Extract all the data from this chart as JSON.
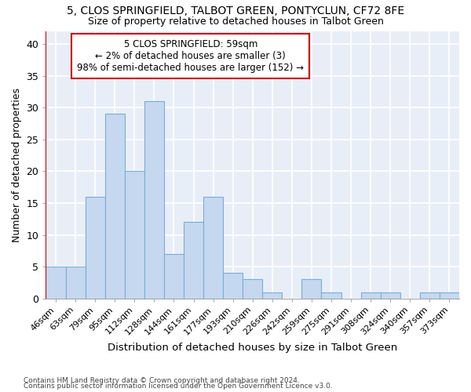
{
  "title1": "5, CLOS SPRINGFIELD, TALBOT GREEN, PONTYCLUN, CF72 8FE",
  "title2": "Size of property relative to detached houses in Talbot Green",
  "xlabel": "Distribution of detached houses by size in Talbot Green",
  "ylabel": "Number of detached properties",
  "categories": [
    "46sqm",
    "63sqm",
    "79sqm",
    "95sqm",
    "112sqm",
    "128sqm",
    "144sqm",
    "161sqm",
    "177sqm",
    "193sqm",
    "210sqm",
    "226sqm",
    "242sqm",
    "259sqm",
    "275sqm",
    "291sqm",
    "308sqm",
    "324sqm",
    "340sqm",
    "357sqm",
    "373sqm"
  ],
  "values": [
    5,
    5,
    16,
    29,
    20,
    31,
    7,
    12,
    16,
    4,
    3,
    1,
    0,
    3,
    1,
    0,
    1,
    1,
    0,
    1,
    1
  ],
  "bar_color": "#c5d8f0",
  "bar_edge_color": "#7aadd4",
  "highlight_bar_edge_color": "#cc0000",
  "annotation_text": "5 CLOS SPRINGFIELD: 59sqm\n← 2% of detached houses are smaller (3)\n98% of semi-detached houses are larger (152) →",
  "annotation_box_color": "#ffffff",
  "annotation_box_edge_color": "#cc0000",
  "background_color": "#ffffff",
  "plot_bg_color": "#e8eef8",
  "grid_color": "#ffffff",
  "ylim": [
    0,
    42
  ],
  "footnote1": "Contains HM Land Registry data © Crown copyright and database right 2024.",
  "footnote2": "Contains public sector information licensed under the Open Government Licence v3.0."
}
